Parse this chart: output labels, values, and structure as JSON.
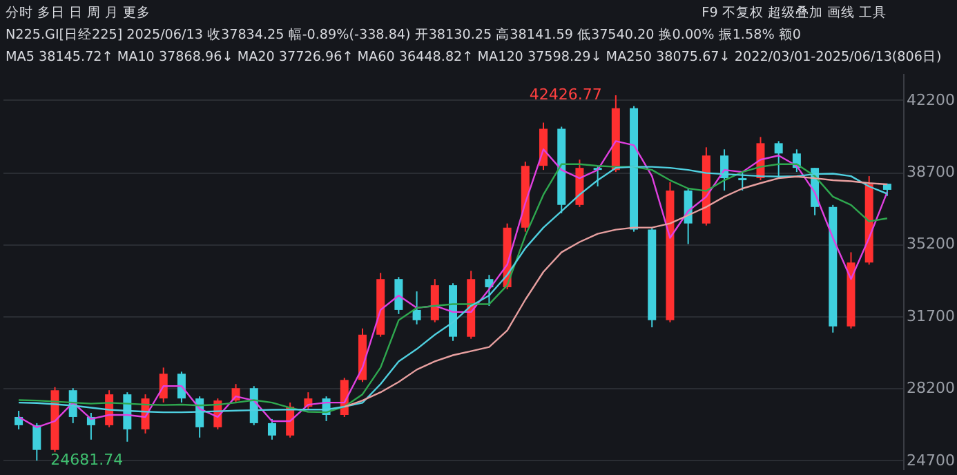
{
  "chart_data": {
    "type": "candlestick",
    "annotations": [
      "分时  多日  日  周  月  更多",
      "F9  不复权  超级叠加  画线  工具",
      "N225.GI[日经225]   2025/06/13   收37834.25   幅-0.89%(-338.84)   开38130.25   高38141.59   低37540.20   换0.00%   振1.58%   额0",
      "MA5 38145.72↑   MA10 37868.96↓   MA20 37726.96↑   MA60 36448.82↑   MA120 37598.29↓   MA250 38075.67↓   2022/03/01-2025/06/13(806日)",
      "42426.77",
      "24681.74"
    ],
    "categories": [
      null,
      null,
      null,
      null,
      null,
      null,
      null,
      null,
      null,
      null,
      null,
      null,
      null,
      null,
      null,
      null,
      null,
      null,
      null,
      null,
      null,
      null,
      null,
      null,
      null,
      null,
      null,
      null,
      null,
      null,
      null,
      null,
      null,
      null,
      null,
      null,
      null,
      null,
      null,
      null,
      null,
      null,
      null,
      null,
      null,
      null,
      null,
      null,
      null
    ],
    "ohlc": [
      [
        26800,
        27100,
        26200,
        26400
      ],
      [
        26400,
        26500,
        24681.74,
        25200
      ],
      [
        25200,
        28250,
        25100,
        28100
      ],
      [
        28100,
        28200,
        26500,
        26800
      ],
      [
        26800,
        27000,
        25700,
        26400
      ],
      [
        26400,
        28100,
        26300,
        27900
      ],
      [
        27900,
        28000,
        25600,
        26200
      ],
      [
        26200,
        27900,
        26000,
        27700
      ],
      [
        27700,
        29200,
        27500,
        28900
      ],
      [
        28900,
        29000,
        27500,
        27700
      ],
      [
        27700,
        27800,
        25800,
        26300
      ],
      [
        26300,
        27700,
        26200,
        27600
      ],
      [
        27600,
        28400,
        27500,
        28200
      ],
      [
        28200,
        28300,
        26400,
        26500
      ],
      [
        26500,
        26700,
        25700,
        25900
      ],
      [
        25900,
        27500,
        25800,
        27300
      ],
      [
        27300,
        28000,
        27200,
        27700
      ],
      [
        27700,
        27800,
        26600,
        26900
      ],
      [
        26900,
        28700,
        26800,
        28600
      ],
      [
        28600,
        31100,
        28500,
        30800
      ],
      [
        30800,
        33800,
        30700,
        33500
      ],
      [
        33500,
        33600,
        31800,
        32000
      ],
      [
        32000,
        32900,
        31300,
        31500
      ],
      [
        31500,
        33500,
        31400,
        33200
      ],
      [
        33200,
        33300,
        30500,
        30700
      ],
      [
        30700,
        33900,
        30600,
        33500
      ],
      [
        33500,
        33700,
        32200,
        33100
      ],
      [
        33100,
        36200,
        33000,
        36000
      ],
      [
        36000,
        39200,
        35800,
        39000
      ],
      [
        39000,
        41100,
        38800,
        40800
      ],
      [
        40800,
        40900,
        36700,
        37100
      ],
      [
        37100,
        39300,
        37000,
        38900
      ],
      [
        38900,
        39000,
        38000,
        38800
      ],
      [
        38800,
        42426.77,
        38700,
        41800
      ],
      [
        41800,
        41900,
        35800,
        35900
      ],
      [
        35900,
        36000,
        31156,
        31500
      ],
      [
        31500,
        38200,
        31400,
        37800
      ],
      [
        37800,
        37900,
        35200,
        36200
      ],
      [
        36200,
        39900,
        36100,
        39500
      ],
      [
        39500,
        39800,
        37800,
        38400
      ],
      [
        38400,
        38700,
        37800,
        38300
      ],
      [
        38400,
        40400,
        38300,
        40100
      ],
      [
        40100,
        40200,
        38500,
        39600
      ],
      [
        39600,
        39800,
        38700,
        38900
      ],
      [
        38900,
        38900,
        36600,
        37000
      ],
      [
        37000,
        37100,
        30900,
        31200
      ],
      [
        31200,
        34800,
        31100,
        34300
      ],
      [
        34300,
        38500,
        34200,
        38100
      ],
      [
        38130.25,
        38141.59,
        37540.2,
        37834.25
      ]
    ],
    "series": [
      {
        "type": "line",
        "color": "#e040e0",
        "values": [
          26800,
          26300,
          26600,
          27500,
          26700,
          26900,
          26900,
          26800,
          28300,
          28300,
          27200,
          26800,
          27800,
          27600,
          26600,
          26600,
          27400,
          27500,
          27500,
          29200,
          32000,
          32700,
          32100,
          32200,
          31900,
          31900,
          33000,
          34200,
          37200,
          39800,
          38800,
          38400,
          38800,
          40200,
          40000,
          38500,
          35500,
          36800,
          37500,
          38800,
          38700,
          39300,
          39500,
          39000,
          37700,
          35500,
          33500,
          35500,
          37727
        ]
      },
      {
        "type": "line",
        "color": "#2fa84f",
        "values": [
          27620,
          27600,
          27550,
          27500,
          27450,
          27490,
          27450,
          27400,
          27380,
          27400,
          27360,
          27400,
          27500,
          27620,
          27500,
          27250,
          27050,
          27030,
          27300,
          27900,
          29200,
          31500,
          32100,
          32200,
          32280,
          32280,
          32280,
          33200,
          35600,
          37600,
          39080,
          39080,
          39000,
          38950,
          38950,
          38800,
          38300,
          37900,
          37780,
          38300,
          38700,
          38950,
          39080,
          39080,
          38500,
          37500,
          37100,
          36300,
          36450
        ]
      },
      {
        "type": "line",
        "color": "#4fd0e0",
        "values": [
          27500,
          27480,
          27420,
          27350,
          27250,
          27150,
          27100,
          27060,
          27030,
          27030,
          27050,
          27080,
          27110,
          27130,
          27150,
          27160,
          27160,
          27160,
          27300,
          27490,
          28400,
          29500,
          30100,
          30800,
          31400,
          32200,
          32700,
          33700,
          35000,
          36000,
          36800,
          37600,
          38300,
          38900,
          38950,
          38950,
          38900,
          38800,
          38650,
          38600,
          38550,
          38500,
          38480,
          38500,
          38600,
          38620,
          38500,
          38000,
          37640
        ]
      },
      {
        "type": "line",
        "color": "#e8a0a0",
        "values": [
          null,
          null,
          null,
          null,
          null,
          null,
          null,
          null,
          null,
          null,
          null,
          null,
          null,
          null,
          null,
          null,
          null,
          null,
          27300,
          27600,
          28000,
          28500,
          29100,
          29500,
          29800,
          30000,
          30200,
          31000,
          32500,
          33850,
          34800,
          35300,
          35700,
          35900,
          36000,
          36000,
          36200,
          36600,
          37000,
          37500,
          37900,
          38160,
          38400,
          38480,
          38400,
          38300,
          38250,
          38160,
          38100
        ]
      }
    ],
    "ylim": [
      24250,
      43500
    ],
    "yticks": [
      24700,
      28200,
      31700,
      35200,
      38700,
      42200
    ],
    "tick_labels": "y",
    "grid": true
  }
}
